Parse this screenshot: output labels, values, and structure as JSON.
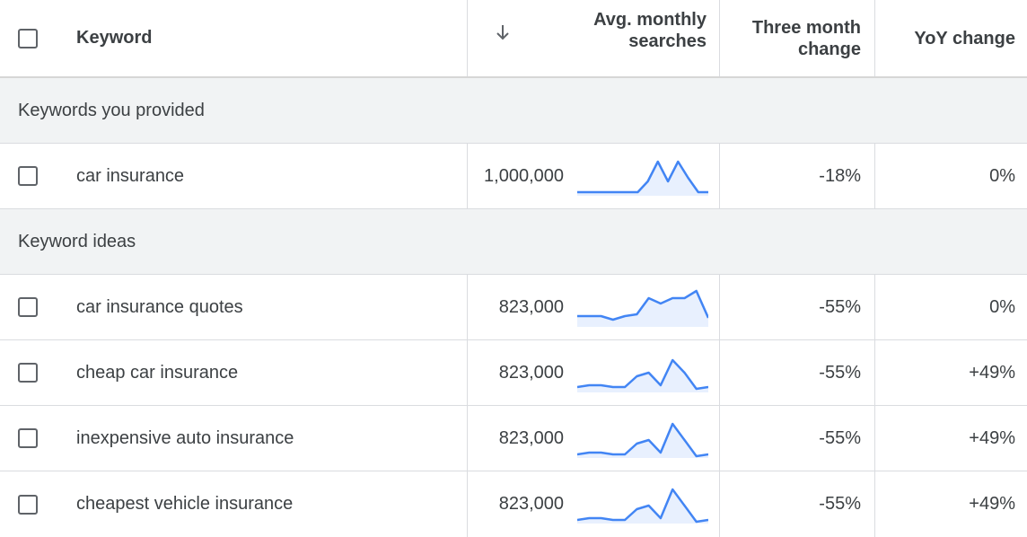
{
  "header": {
    "keyword": "Keyword",
    "avg_line1": "Avg. monthly",
    "avg_line2": "searches",
    "three_line1": "Three month",
    "three_line2": "change",
    "yoy": "YoY change",
    "sort_icon": "arrow-down-icon"
  },
  "groups": {
    "provided": "Keywords you provided",
    "ideas": "Keyword ideas"
  },
  "rows": [
    {
      "keyword": "car insurance",
      "avg": "1,000,000",
      "three": "-18%",
      "yoy": "0%",
      "trend": [
        0.05,
        0.05,
        0.05,
        0.05,
        0.05,
        0.05,
        0.05,
        0.35,
        0.9,
        0.35,
        0.9,
        0.45,
        0.05,
        0.05
      ]
    },
    {
      "keyword": "car insurance quotes",
      "avg": "823,000",
      "three": "-55%",
      "yoy": "0%",
      "trend": [
        0.25,
        0.25,
        0.25,
        0.15,
        0.25,
        0.3,
        0.75,
        0.6,
        0.75,
        0.75,
        0.95,
        0.2
      ]
    },
    {
      "keyword": "cheap car insurance",
      "avg": "823,000",
      "three": "-55%",
      "yoy": "+49%",
      "trend": [
        0.1,
        0.15,
        0.15,
        0.1,
        0.1,
        0.4,
        0.5,
        0.15,
        0.85,
        0.5,
        0.05,
        0.1
      ]
    },
    {
      "keyword": "inexpensive auto insurance",
      "avg": "823,000",
      "three": "-55%",
      "yoy": "+49%",
      "trend": [
        0.05,
        0.1,
        0.1,
        0.05,
        0.05,
        0.35,
        0.45,
        0.1,
        0.9,
        0.45,
        0.0,
        0.05
      ]
    },
    {
      "keyword": "cheapest vehicle insurance",
      "avg": "823,000",
      "three": "-55%",
      "yoy": "+49%",
      "trend": [
        0.05,
        0.1,
        0.1,
        0.05,
        0.05,
        0.35,
        0.45,
        0.1,
        0.9,
        0.45,
        0.0,
        0.05
      ]
    }
  ],
  "colors": {
    "sparkline": "#4285f4",
    "sparkline_fill": "#e8f0fe"
  }
}
